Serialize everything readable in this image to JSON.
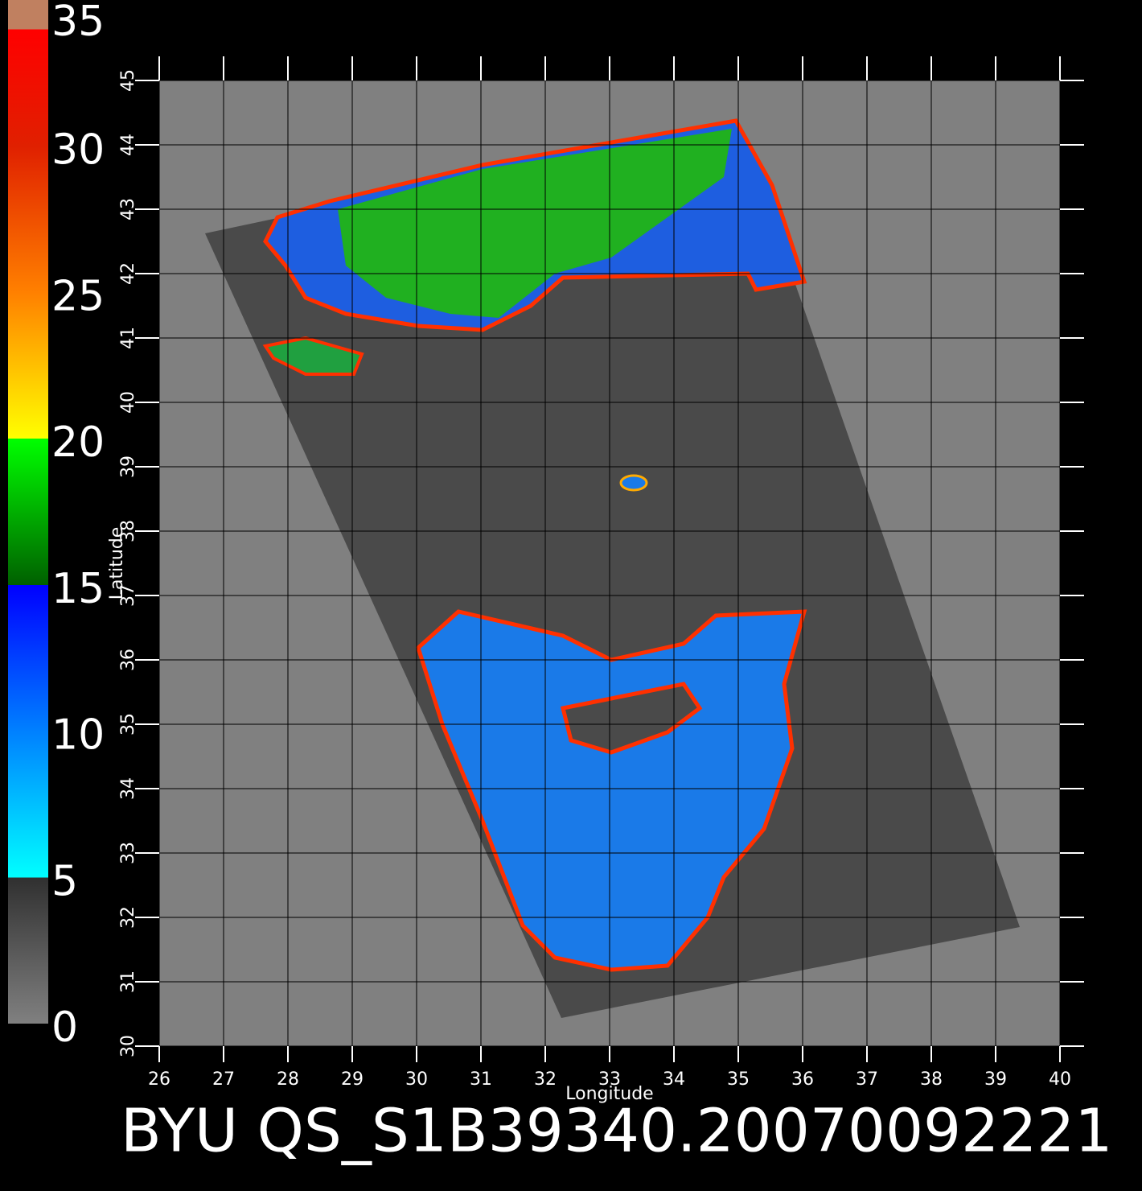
{
  "title": "BYU QS_S1B39340.20070092221",
  "map": {
    "xlabel": "Longitude",
    "ylabel": "Latitude",
    "xlim": [
      26,
      40
    ],
    "ylim": [
      30,
      45
    ],
    "xticks": [
      26,
      27,
      28,
      29,
      30,
      31,
      32,
      33,
      34,
      35,
      36,
      37,
      38,
      39,
      40
    ],
    "yticks": [
      30,
      31,
      32,
      33,
      34,
      35,
      36,
      37,
      38,
      39,
      40,
      41,
      42,
      43,
      44,
      45
    ]
  },
  "colorbar": {
    "lim": [
      0,
      35
    ],
    "ticks": [
      0,
      5,
      10,
      15,
      20,
      25,
      30,
      35
    ],
    "colormap": [
      {
        "at": 0,
        "color": "#808080"
      },
      {
        "at": 5,
        "color": "#303030"
      },
      {
        "at": 5,
        "color": "#00ffff"
      },
      {
        "at": 10,
        "color": "#0080ff"
      },
      {
        "at": 15,
        "color": "#0000ff"
      },
      {
        "at": 15,
        "color": "#006000"
      },
      {
        "at": 20,
        "color": "#00ff00"
      },
      {
        "at": 20,
        "color": "#ffff00"
      },
      {
        "at": 25,
        "color": "#ff8000"
      },
      {
        "at": 30,
        "color": "#e02000"
      },
      {
        "at": 34,
        "color": "#ff0000"
      },
      {
        "at": 34,
        "color": "#c08060"
      },
      {
        "at": 35,
        "color": "#c08060"
      }
    ]
  }
}
